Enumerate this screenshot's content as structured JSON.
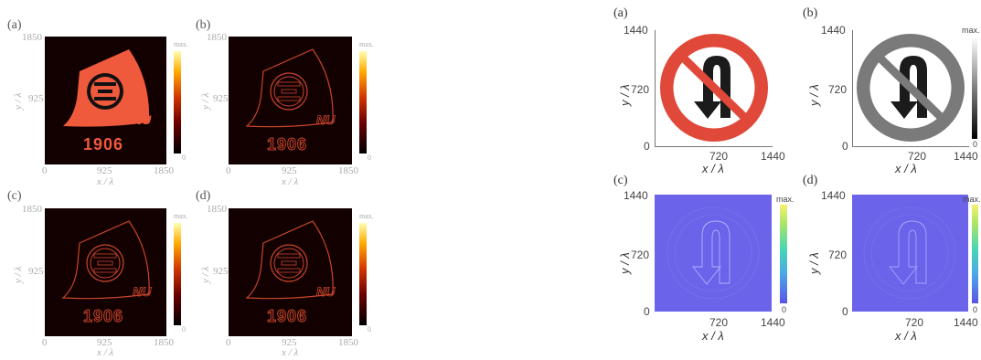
{
  "left_figure": {
    "panels": [
      {
        "label": "(a)",
        "y_top": "1850",
        "y_mid": "925",
        "x_left": "0",
        "x_mid": "925",
        "x_right": "1850",
        "xlabel": "x / λ",
        "ylabel": "y / λ",
        "cbar_max": "max.",
        "cbar_min": "0",
        "year": "1906"
      },
      {
        "label": "(b)",
        "y_top": "1850",
        "y_mid": "925",
        "x_left": "0",
        "x_mid": "925",
        "x_right": "1850",
        "xlabel": "x / λ",
        "ylabel": "y / λ",
        "cbar_max": "max.",
        "cbar_min": "0",
        "year": "1906"
      },
      {
        "label": "(c)",
        "y_top": "1850",
        "y_mid": "925",
        "x_left": "0",
        "x_mid": "925",
        "x_right": "1850",
        "xlabel": "x / λ",
        "ylabel": "y / λ",
        "cbar_max": "max.",
        "cbar_min": "0",
        "year": "1906"
      },
      {
        "label": "(d)",
        "y_top": "1850",
        "y_mid": "925",
        "x_left": "0",
        "x_mid": "925",
        "x_right": "1850",
        "xlabel": "x / λ",
        "ylabel": "y / λ",
        "cbar_max": "max.",
        "cbar_min": "0",
        "year": "1906"
      }
    ]
  },
  "right_figure": {
    "panels": [
      {
        "label": "(a)",
        "y_top": "1440",
        "y_mid": "720",
        "y_bottom": "0",
        "x_mid": "720",
        "x_right": "1440",
        "xlabel": "x / λ",
        "ylabel": "y / λ"
      },
      {
        "label": "(b)",
        "y_top": "1440",
        "y_mid": "720",
        "y_bottom": "0",
        "x_mid": "720",
        "x_right": "1440",
        "xlabel": "x / λ",
        "ylabel": "y / λ",
        "cbar_max": "max.",
        "cbar_min": "0"
      },
      {
        "label": "(c)",
        "y_top": "1440",
        "y_mid": "720",
        "y_bottom": "0",
        "x_mid": "720",
        "x_right": "1440",
        "xlabel": "x / λ",
        "ylabel": "y / λ",
        "cbar_max": "max.",
        "cbar_min": "0"
      },
      {
        "label": "(d)",
        "y_top": "1440",
        "y_mid": "720",
        "y_bottom": "0",
        "x_mid": "720",
        "x_right": "1440",
        "xlabel": "x / λ",
        "ylabel": "y / λ",
        "cbar_max": "max.",
        "cbar_min": "0"
      }
    ]
  },
  "colors": {
    "heat_background": "#120100",
    "logo_red": "#f05a3c",
    "sign_red": "#e0493a",
    "sign_gray": "#7a7a7a",
    "phase_purple": "#6b63ea"
  }
}
